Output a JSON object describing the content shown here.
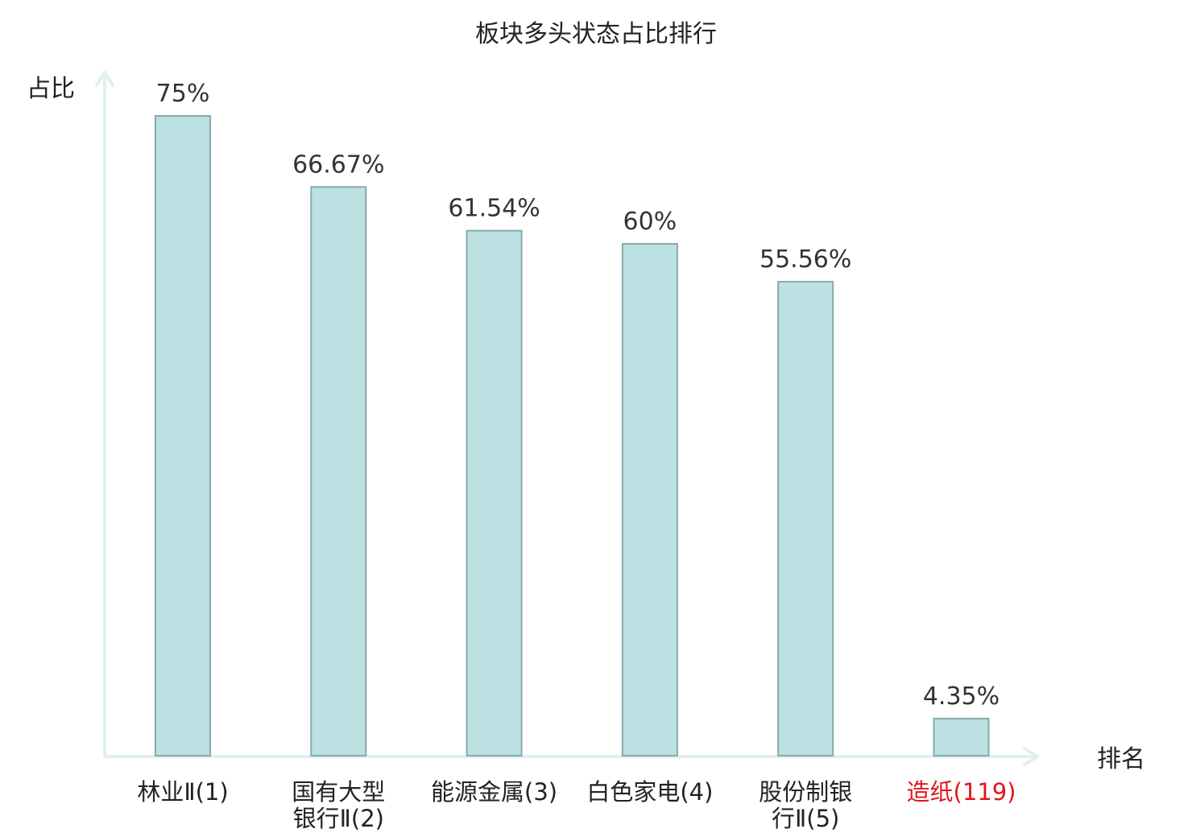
{
  "chart_data": {
    "type": "bar",
    "title": "板块多头状态占比排行",
    "ylabel": "占比",
    "xlabel": "排名",
    "ylim": [
      0,
      100
    ],
    "grid": false,
    "categories": [
      [
        "林业Ⅱ(1)"
      ],
      [
        "国有大型",
        "银行Ⅱ(2)"
      ],
      [
        "能源金属(3)"
      ],
      [
        "白色家电(4)"
      ],
      [
        "股份制银",
        "行Ⅱ(5)"
      ],
      [
        "造纸(119)"
      ]
    ],
    "values": [
      75,
      66.67,
      61.54,
      60,
      55.56,
      4.35
    ],
    "value_labels": [
      "75%",
      "66.67%",
      "61.54%",
      "60%",
      "55.56%",
      "4.35%"
    ],
    "highlight_index": 5
  },
  "colors": {
    "bar_fill": "#bde0e3",
    "bar_stroke": "#86a9ac",
    "axis": "#e0f0ef",
    "text": "#222222",
    "value_text": "#333333",
    "highlight_text": "#e0171d"
  }
}
